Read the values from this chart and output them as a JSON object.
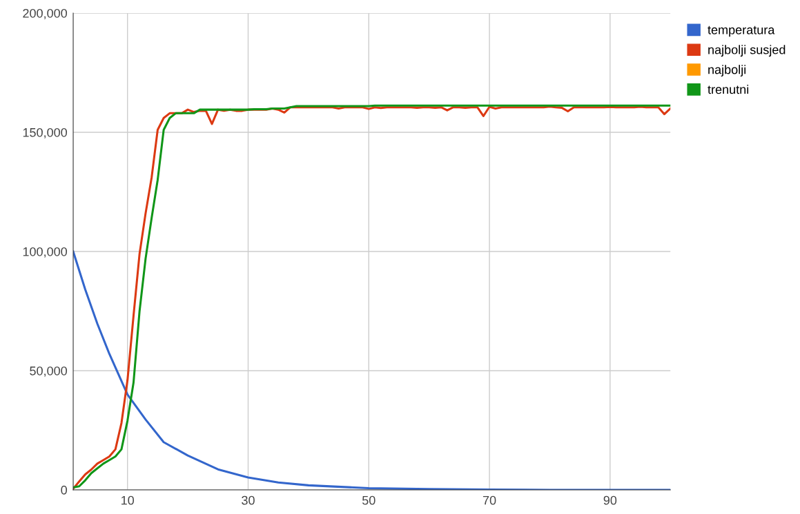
{
  "chart_data": {
    "type": "line",
    "xlim": [
      1,
      100
    ],
    "x": [
      1,
      2,
      3,
      4,
      5,
      6,
      7,
      8,
      9,
      10,
      11,
      12,
      13,
      14,
      15,
      16,
      17,
      18,
      19,
      20,
      21,
      22,
      23,
      24,
      25,
      26,
      27,
      28,
      29,
      30,
      31,
      32,
      33,
      34,
      35,
      36,
      37,
      38,
      39,
      40,
      41,
      42,
      43,
      44,
      45,
      46,
      47,
      48,
      49,
      50,
      51,
      52,
      53,
      54,
      55,
      56,
      57,
      58,
      59,
      60,
      61,
      62,
      63,
      64,
      65,
      66,
      67,
      68,
      69,
      70,
      71,
      72,
      73,
      74,
      75,
      76,
      77,
      78,
      79,
      80,
      81,
      82,
      83,
      84,
      85,
      86,
      87,
      88,
      89,
      90,
      91,
      92,
      93,
      94,
      95,
      96,
      97,
      98,
      99,
      100
    ],
    "ylim": [
      0,
      200000
    ],
    "xticks": [
      10,
      30,
      50,
      70,
      90
    ],
    "yticks": [
      {
        "value": 0,
        "label": "0"
      },
      {
        "value": 50000,
        "label": "50,000"
      },
      {
        "value": 100000,
        "label": "100,000"
      },
      {
        "value": 150000,
        "label": "150,000"
      },
      {
        "value": 200000,
        "label": "200,000"
      }
    ],
    "grid": true,
    "legend": "top right",
    "marker": "none",
    "line_style": "solid",
    "series": [
      {
        "name": "temperatura",
        "color": "#3366cc",
        "x": [
          1,
          3,
          5,
          7,
          10,
          13,
          16,
          20,
          25,
          30,
          35,
          40,
          50,
          60,
          70,
          80,
          90,
          100
        ],
        "values": [
          100000,
          84000,
          69700,
          57000,
          40000,
          29500,
          20000,
          14400,
          8600,
          5200,
          3100,
          1900,
          700,
          300,
          100,
          0,
          0,
          0
        ]
      },
      {
        "name": "najbolji susjed",
        "color": "#dc3912",
        "values": [
          500,
          3500,
          6500,
          8500,
          11000,
          12500,
          14000,
          17000,
          28000,
          46000,
          73000,
          99000,
          116000,
          131000,
          151000,
          156000,
          158000,
          158000,
          158000,
          159500,
          158500,
          159000,
          159000,
          153500,
          159500,
          159000,
          159500,
          159000,
          159000,
          159500,
          159500,
          159500,
          159500,
          160000,
          159500,
          158300,
          160500,
          160500,
          160500,
          160500,
          160500,
          160500,
          160500,
          160500,
          160000,
          160500,
          160500,
          160500,
          160500,
          159800,
          160500,
          160200,
          160500,
          160500,
          160500,
          160500,
          160500,
          160300,
          160500,
          160500,
          160300,
          160500,
          159200,
          160500,
          160500,
          160300,
          160500,
          160500,
          156800,
          160700,
          160000,
          160500,
          160500,
          160500,
          160500,
          160500,
          160500,
          160500,
          160500,
          160800,
          160500,
          160300,
          158800,
          160500,
          160500,
          160500,
          160500,
          160500,
          160500,
          160600,
          160500,
          160500,
          160500,
          160500,
          160700,
          160500,
          160500,
          160500,
          157600,
          160000
        ]
      },
      {
        "name": "najbolji",
        "color": "#ff9900",
        "values": [
          null,
          null,
          null,
          null,
          null,
          null,
          null,
          null,
          null,
          null,
          null,
          null,
          null,
          null,
          null,
          null,
          null,
          null,
          null,
          null,
          null,
          null,
          null,
          null,
          null,
          null,
          null,
          null,
          null,
          null,
          null,
          null,
          null,
          null,
          null,
          null,
          null,
          null,
          null,
          null,
          null,
          null,
          null,
          null,
          null,
          null,
          null,
          null,
          null,
          null,
          null,
          null,
          null,
          null,
          null,
          null,
          null,
          null,
          null,
          null,
          null,
          null,
          null,
          null,
          null,
          null,
          null,
          null,
          null,
          null,
          null,
          null,
          null,
          null,
          null,
          null,
          null,
          null,
          null,
          null,
          null,
          null,
          null,
          null,
          null,
          null,
          null,
          null,
          null,
          null,
          null,
          null,
          null,
          null,
          null,
          null,
          null,
          null,
          null,
          null
        ]
      },
      {
        "name": "trenutni",
        "color": "#109618",
        "values": [
          1000,
          1500,
          4000,
          7000,
          9000,
          11000,
          12500,
          14000,
          17000,
          29000,
          45000,
          75000,
          97000,
          114000,
          130000,
          151000,
          156000,
          158000,
          158000,
          158000,
          158000,
          159500,
          159500,
          159500,
          159500,
          159500,
          159500,
          159500,
          159500,
          159500,
          159700,
          159700,
          159700,
          160000,
          160000,
          160000,
          160500,
          161000,
          161000,
          161000,
          161000,
          161000,
          161000,
          161000,
          161000,
          161000,
          161000,
          161000,
          161000,
          161000,
          161200,
          161200,
          161200,
          161200,
          161200,
          161200,
          161200,
          161200,
          161200,
          161200,
          161200,
          161200,
          161200,
          161200,
          161200,
          161200,
          161200,
          161200,
          161200,
          161200,
          161200,
          161200,
          161200,
          161200,
          161200,
          161200,
          161200,
          161200,
          161200,
          161200,
          161200,
          161200,
          161200,
          161200,
          161200,
          161200,
          161200,
          161200,
          161200,
          161200,
          161200,
          161200,
          161200,
          161200,
          161200,
          161200,
          161200,
          161200,
          161200,
          161200
        ]
      }
    ]
  }
}
